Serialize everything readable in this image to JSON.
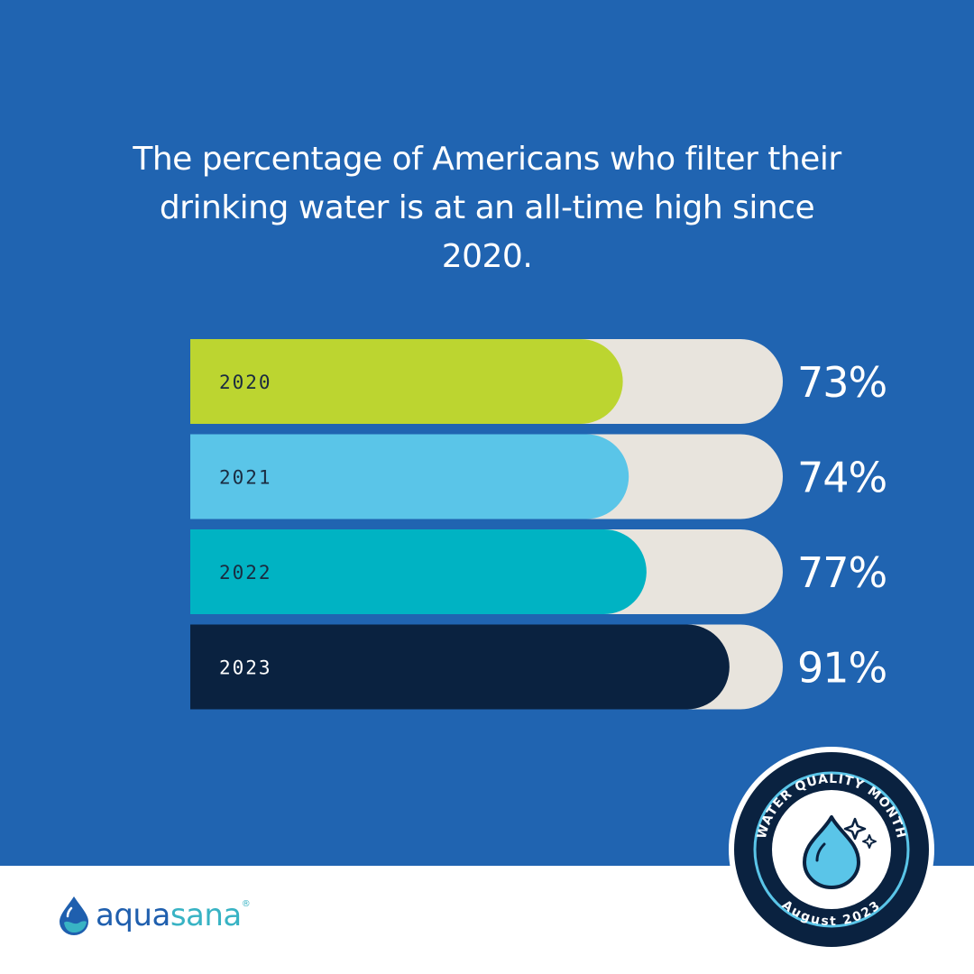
{
  "headline": "The percentage of Americans who filter their drinking water is at an all-time high since 2020.",
  "chart_data": {
    "type": "bar",
    "orientation": "horizontal",
    "categories": [
      "2020",
      "2021",
      "2022",
      "2023"
    ],
    "values": [
      73,
      74,
      77,
      91
    ],
    "value_labels": [
      "73%",
      "74%",
      "77%",
      "91%"
    ],
    "unit": "%",
    "xlim": [
      0,
      100
    ],
    "colors": [
      "#bcd530",
      "#5ac5e8",
      "#00b3c3",
      "#0a2240"
    ],
    "track_color": "#e8e4dd",
    "title": "",
    "xlabel": "",
    "ylabel": ""
  },
  "logo": {
    "part1": "aqua",
    "part2": "sana",
    "mark": "®",
    "icon": "water-drop-icon"
  },
  "badge": {
    "top_text": "WATER QUALITY MONTH",
    "bottom_text": "August 2023",
    "icon": "sparkling-water-drop-icon"
  },
  "colors": {
    "background": "#2064b1",
    "footer": "#ffffff",
    "badge_ring": "#0a2240",
    "drop": "#5ac5e8"
  }
}
